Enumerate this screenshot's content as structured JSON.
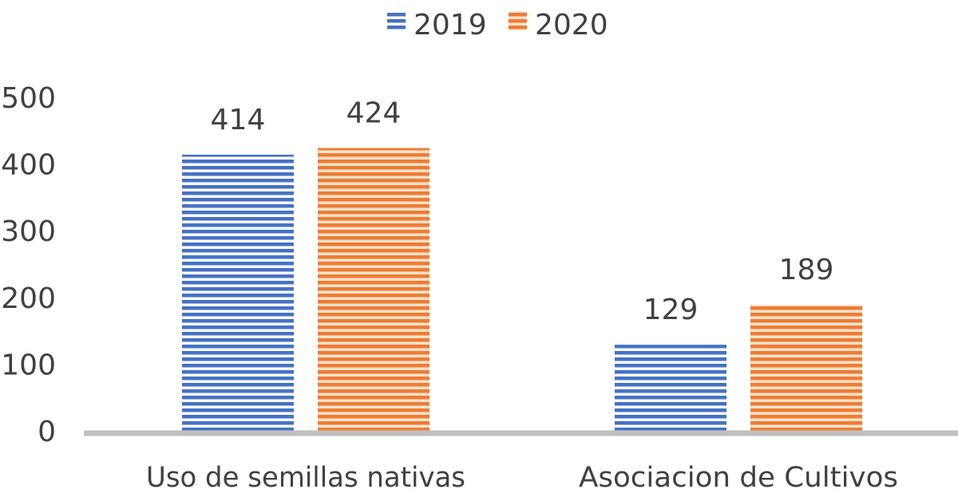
{
  "chart_data": {
    "type": "bar",
    "title": "",
    "xlabel": "",
    "ylabel": "",
    "categories": [
      "Uso de semillas nativas",
      "Asociacion de Cultivos"
    ],
    "series": [
      {
        "name": "2019",
        "values": [
          414,
          129
        ],
        "color": "#4472C4"
      },
      {
        "name": "2020",
        "values": [
          424,
          189
        ],
        "color": "#ED7D31"
      }
    ],
    "ylim": [
      0,
      500
    ],
    "yticks": [
      0,
      100,
      200,
      300,
      400,
      500
    ],
    "ytick_labels": [
      "0",
      "100",
      "200",
      "300",
      "400",
      "500"
    ],
    "data_labels": [
      [
        "414",
        "129"
      ],
      [
        "424",
        "189"
      ]
    ],
    "grid": false,
    "legend": {
      "position": "top-center",
      "entries": [
        "2019",
        "2020"
      ]
    },
    "pattern": "horizontal-stripes",
    "axis_color": "#BFBFBF"
  }
}
